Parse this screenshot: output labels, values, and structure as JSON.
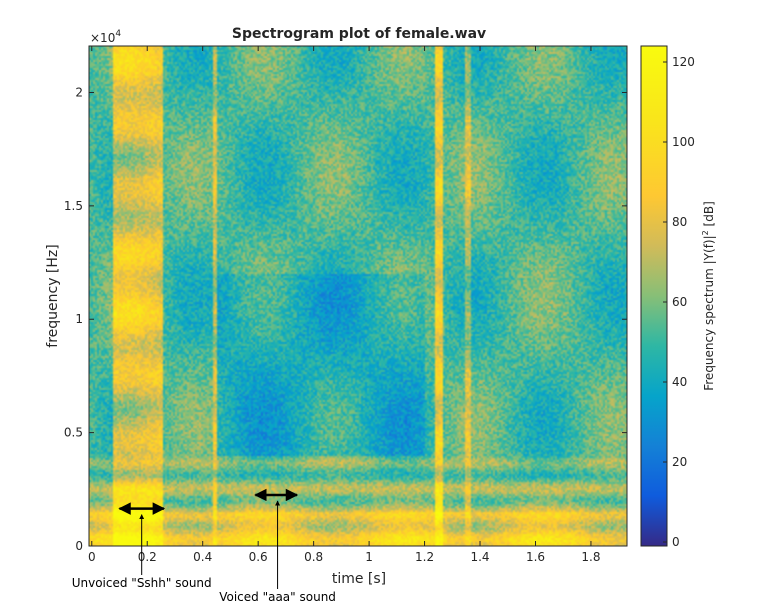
{
  "chart_data": {
    "type": "heatmap",
    "title": "Spectrogram plot of female.wav",
    "xlabel": "time [s]",
    "ylabel": "frequency [Hz]",
    "xlim": [
      -0.01,
      1.93
    ],
    "ylim": [
      0,
      22050
    ],
    "x_ticks": [
      0,
      0.2,
      0.4,
      0.6,
      0.8,
      1,
      1.2,
      1.4,
      1.6,
      1.8
    ],
    "x_tick_labels": [
      "0",
      "0.2",
      "0.4",
      "0.6",
      "0.8",
      "1",
      "1.2",
      "1.4",
      "1.6",
      "1.8"
    ],
    "y_ticks": [
      0,
      5000,
      10000,
      15000,
      20000
    ],
    "y_tick_labels": [
      "0",
      "0.5",
      "1",
      "1.5",
      "2"
    ],
    "y_exponent_label": "×10",
    "y_exponent_power": "4",
    "colorbar": {
      "label": "Frequency spectrum |Y(f)|² [dB]",
      "label_prefix": "Frequency spectrum |Y(f)|",
      "label_power": "2",
      "label_suffix": " [dB]",
      "range": [
        -1,
        124
      ],
      "ticks": [
        0,
        20,
        40,
        60,
        80,
        100,
        120
      ],
      "tick_labels": [
        "0",
        "20",
        "40",
        "60",
        "80",
        "100",
        "120"
      ],
      "colormap": "parula"
    },
    "loud_bands": [
      {
        "t_start": 0.08,
        "t_end": 0.26,
        "level": 100
      },
      {
        "t_start": 0.435,
        "t_end": 0.455,
        "level": 90
      },
      {
        "t_start": 1.235,
        "t_end": 1.265,
        "level": 105
      },
      {
        "t_start": 1.345,
        "t_end": 1.37,
        "level": 85
      }
    ],
    "annotations": [
      {
        "text": "Unvoiced \"Sshh\" sound",
        "arrow_from_t": 0.1,
        "arrow_to_t": 0.26,
        "arrow_freq": 1650,
        "pointer_t": 0.18
      },
      {
        "text": "Voiced \"aaa\" sound",
        "arrow_from_t": 0.59,
        "arrow_to_t": 0.74,
        "arrow_freq": 2250,
        "pointer_t": 0.67
      }
    ]
  }
}
